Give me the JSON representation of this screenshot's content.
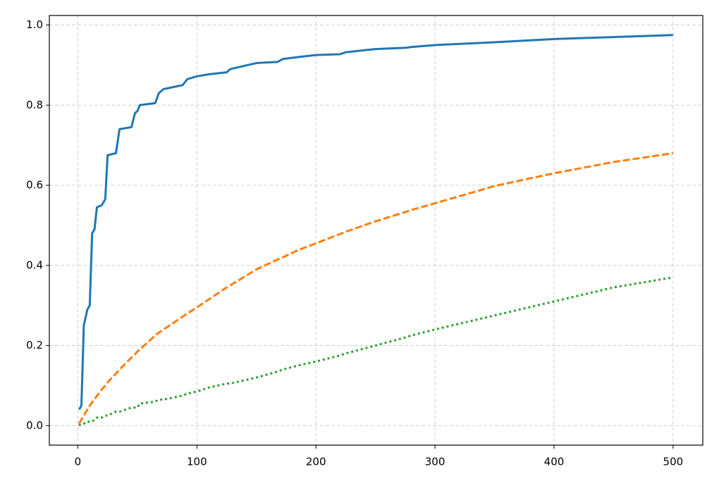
{
  "chart_data": {
    "type": "line",
    "x": [
      1,
      3,
      5,
      8,
      10,
      12,
      14,
      16,
      20,
      23,
      25,
      32,
      35,
      45,
      48,
      50,
      52,
      65,
      68,
      72,
      88,
      92,
      100,
      110,
      125,
      128,
      150,
      168,
      172,
      185,
      200,
      220,
      225,
      250,
      275,
      280,
      300,
      350,
      400,
      450,
      500
    ],
    "series": [
      {
        "color": "#1f77b4",
        "style": "solid",
        "values": [
          0.04,
          0.05,
          0.25,
          0.29,
          0.3,
          0.48,
          0.49,
          0.545,
          0.55,
          0.565,
          0.675,
          0.68,
          0.74,
          0.745,
          0.78,
          0.785,
          0.8,
          0.805,
          0.83,
          0.84,
          0.85,
          0.865,
          0.872,
          0.877,
          0.882,
          0.89,
          0.905,
          0.908,
          0.915,
          0.92,
          0.925,
          0.927,
          0.932,
          0.94,
          0.943,
          0.945,
          0.95,
          0.957,
          0.965,
          0.97,
          0.975
        ]
      },
      {
        "color": "#ff7f0e",
        "style": "dashed",
        "values": [
          0.005,
          0.015,
          0.025,
          0.04,
          0.05,
          0.058,
          0.066,
          0.074,
          0.09,
          0.1,
          0.108,
          0.13,
          0.14,
          0.17,
          0.178,
          0.185,
          0.19,
          0.225,
          0.232,
          0.24,
          0.272,
          0.28,
          0.295,
          0.315,
          0.345,
          0.35,
          0.39,
          0.415,
          0.42,
          0.438,
          0.455,
          0.478,
          0.484,
          0.51,
          0.533,
          0.538,
          0.555,
          0.598,
          0.63,
          0.658,
          0.68
        ]
      },
      {
        "color": "#2ca02c",
        "style": "dotted",
        "values": [
          0.0,
          0.005,
          0.005,
          0.01,
          0.01,
          0.01,
          0.015,
          0.02,
          0.02,
          0.025,
          0.025,
          0.035,
          0.035,
          0.045,
          0.045,
          0.045,
          0.055,
          0.06,
          0.065,
          0.065,
          0.075,
          0.08,
          0.085,
          0.095,
          0.105,
          0.105,
          0.12,
          0.135,
          0.14,
          0.15,
          0.16,
          0.175,
          0.18,
          0.2,
          0.22,
          0.225,
          0.24,
          0.275,
          0.31,
          0.345,
          0.37
        ]
      }
    ],
    "xlim": [
      -23.95,
      524.95
    ],
    "xticks": [
      0,
      100,
      200,
      300,
      400,
      500
    ],
    "ylim": [
      -0.04875,
      1.02375
    ],
    "yticks": [
      {
        "value": 0,
        "label": "0.0"
      },
      0.2,
      0.4,
      0.6,
      0.8,
      {
        "value": 1,
        "label": "1.0"
      }
    ],
    "grid": true
  }
}
